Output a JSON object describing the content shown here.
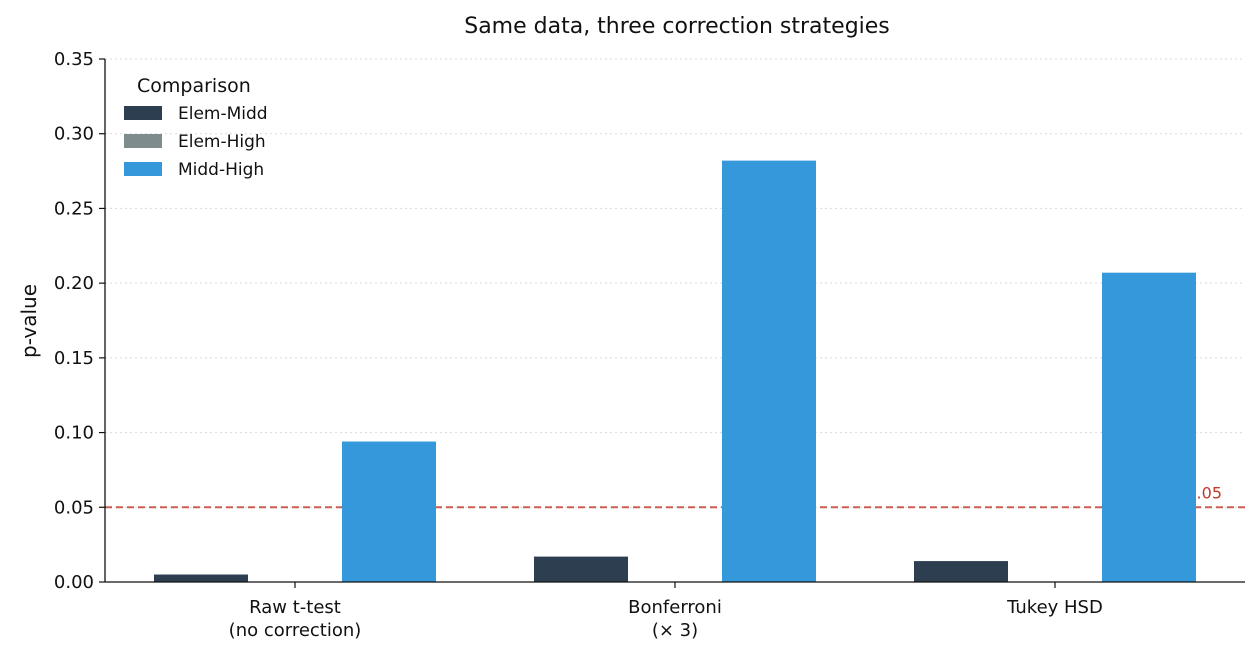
{
  "chart_data": {
    "type": "bar",
    "title": "Same data, three correction strategies",
    "xlabel": "",
    "ylabel": "p-value",
    "ylim": [
      0,
      0.35
    ],
    "yticks": [
      "0.00",
      "0.05",
      "0.10",
      "0.15",
      "0.20",
      "0.25",
      "0.30",
      "0.35"
    ],
    "categories": [
      [
        "Raw t-test",
        "(no correction)"
      ],
      [
        "Bonferroni",
        "(× 3)"
      ],
      [
        "Tukey HSD"
      ]
    ],
    "legend_title": "Comparison",
    "legend_position": "top-left",
    "grid": "horizontal dotted",
    "series": [
      {
        "name": "Elem-Midd",
        "color": "#2c3e50",
        "values": [
          0.005,
          0.017,
          0.014
        ]
      },
      {
        "name": "Elem-High",
        "color": "#7f8c8d",
        "values": [
          0.0,
          0.0,
          0.0
        ]
      },
      {
        "name": "Midd-High",
        "color": "#3498db",
        "values": [
          0.094,
          0.282,
          0.207
        ]
      }
    ],
    "reference_line": {
      "value": 0.05,
      "label": "α = 0.05",
      "color": "#c0392b",
      "style": "dashed"
    }
  }
}
